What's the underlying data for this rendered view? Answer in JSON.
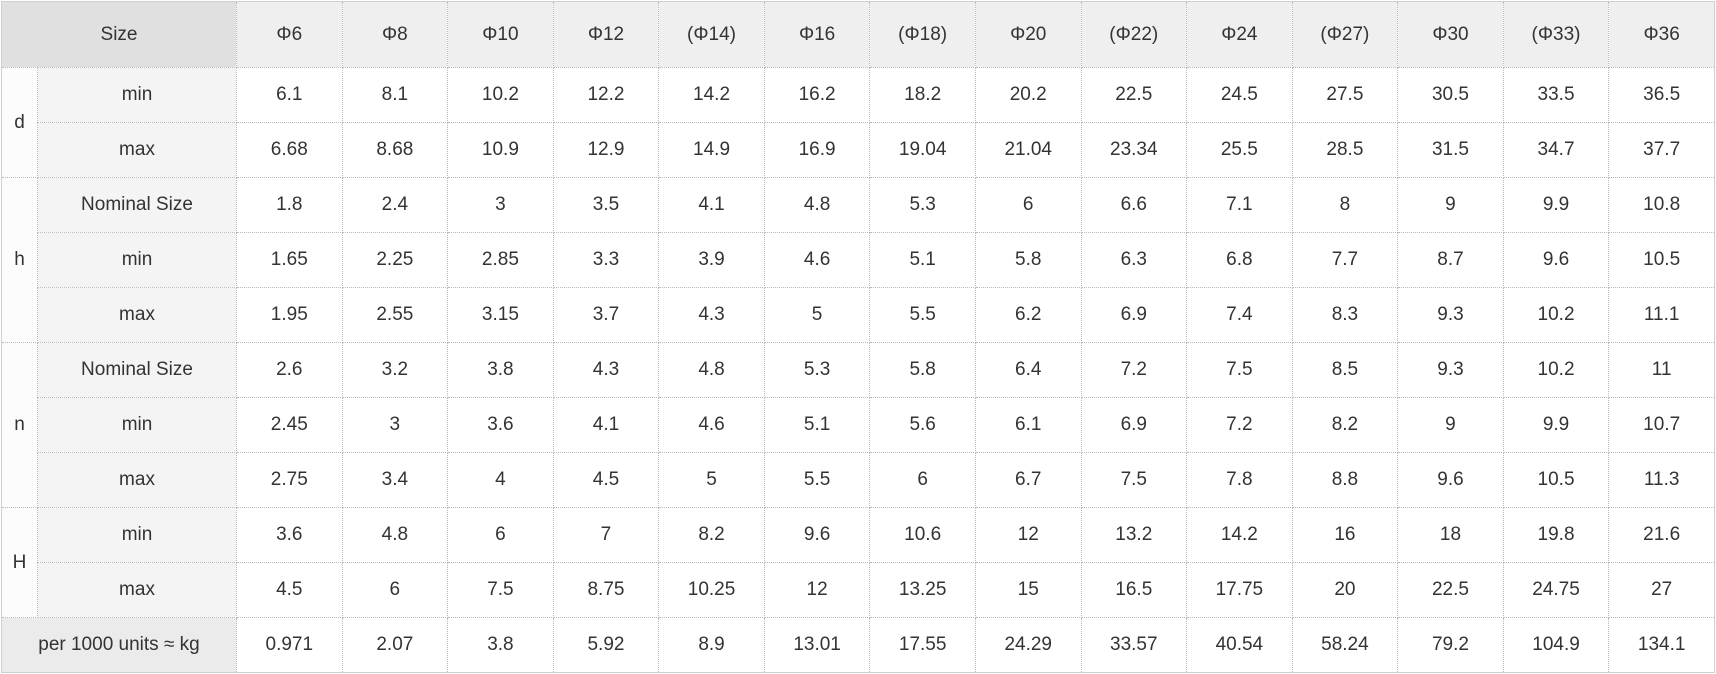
{
  "table": {
    "corner_label": "Size",
    "columns": [
      "Φ6",
      "Φ8",
      "Φ10",
      "Φ12",
      "(Φ14)",
      "Φ16",
      "(Φ18)",
      "Φ20",
      "(Φ22)",
      "Φ24",
      "(Φ27)",
      "Φ30",
      "(Φ33)",
      "Φ36"
    ],
    "groups": [
      {
        "label": "d",
        "rows": [
          {
            "label": "min",
            "values": [
              "6.1",
              "8.1",
              "10.2",
              "12.2",
              "14.2",
              "16.2",
              "18.2",
              "20.2",
              "22.5",
              "24.5",
              "27.5",
              "30.5",
              "33.5",
              "36.5"
            ]
          },
          {
            "label": "max",
            "values": [
              "6.68",
              "8.68",
              "10.9",
              "12.9",
              "14.9",
              "16.9",
              "19.04",
              "21.04",
              "23.34",
              "25.5",
              "28.5",
              "31.5",
              "34.7",
              "37.7"
            ]
          }
        ]
      },
      {
        "label": "h",
        "rows": [
          {
            "label": "Nominal Size",
            "values": [
              "1.8",
              "2.4",
              "3",
              "3.5",
              "4.1",
              "4.8",
              "5.3",
              "6",
              "6.6",
              "7.1",
              "8",
              "9",
              "9.9",
              "10.8"
            ]
          },
          {
            "label": "min",
            "values": [
              "1.65",
              "2.25",
              "2.85",
              "3.3",
              "3.9",
              "4.6",
              "5.1",
              "5.8",
              "6.3",
              "6.8",
              "7.7",
              "8.7",
              "9.6",
              "10.5"
            ]
          },
          {
            "label": "max",
            "values": [
              "1.95",
              "2.55",
              "3.15",
              "3.7",
              "4.3",
              "5",
              "5.5",
              "6.2",
              "6.9",
              "7.4",
              "8.3",
              "9.3",
              "10.2",
              "11.1"
            ]
          }
        ]
      },
      {
        "label": "n",
        "rows": [
          {
            "label": "Nominal Size",
            "values": [
              "2.6",
              "3.2",
              "3.8",
              "4.3",
              "4.8",
              "5.3",
              "5.8",
              "6.4",
              "7.2",
              "7.5",
              "8.5",
              "9.3",
              "10.2",
              "11"
            ]
          },
          {
            "label": "min",
            "values": [
              "2.45",
              "3",
              "3.6",
              "4.1",
              "4.6",
              "5.1",
              "5.6",
              "6.1",
              "6.9",
              "7.2",
              "8.2",
              "9",
              "9.9",
              "10.7"
            ]
          },
          {
            "label": "max",
            "values": [
              "2.75",
              "3.4",
              "4",
              "4.5",
              "5",
              "5.5",
              "6",
              "6.7",
              "7.5",
              "7.8",
              "8.8",
              "9.6",
              "10.5",
              "11.3"
            ]
          }
        ]
      },
      {
        "label": "H",
        "rows": [
          {
            "label": "min",
            "values": [
              "3.6",
              "4.8",
              "6",
              "7",
              "8.2",
              "9.6",
              "10.6",
              "12",
              "13.2",
              "14.2",
              "16",
              "18",
              "19.8",
              "21.6"
            ]
          },
          {
            "label": "max",
            "values": [
              "4.5",
              "6",
              "7.5",
              "8.75",
              "10.25",
              "12",
              "13.25",
              "15",
              "16.5",
              "17.75",
              "20",
              "22.5",
              "24.75",
              "27"
            ]
          }
        ]
      }
    ],
    "footer_row": {
      "label": "per 1000 units ≈ kg",
      "values": [
        "0.971",
        "2.07",
        "3.8",
        "5.92",
        "8.9",
        "13.01",
        "17.55",
        "24.29",
        "33.57",
        "40.54",
        "58.24",
        "79.2",
        "104.9",
        "134.1"
      ]
    }
  },
  "colors": {
    "header_accent_text": "#1a6aa5",
    "corner_bg": "#e0e0e0",
    "column_header_bg": "#efeff0",
    "row_label_bg": "#f4f4f4",
    "footer_label_bg": "#ebebeb",
    "border": "#b9b9b9",
    "text": "#333333"
  }
}
